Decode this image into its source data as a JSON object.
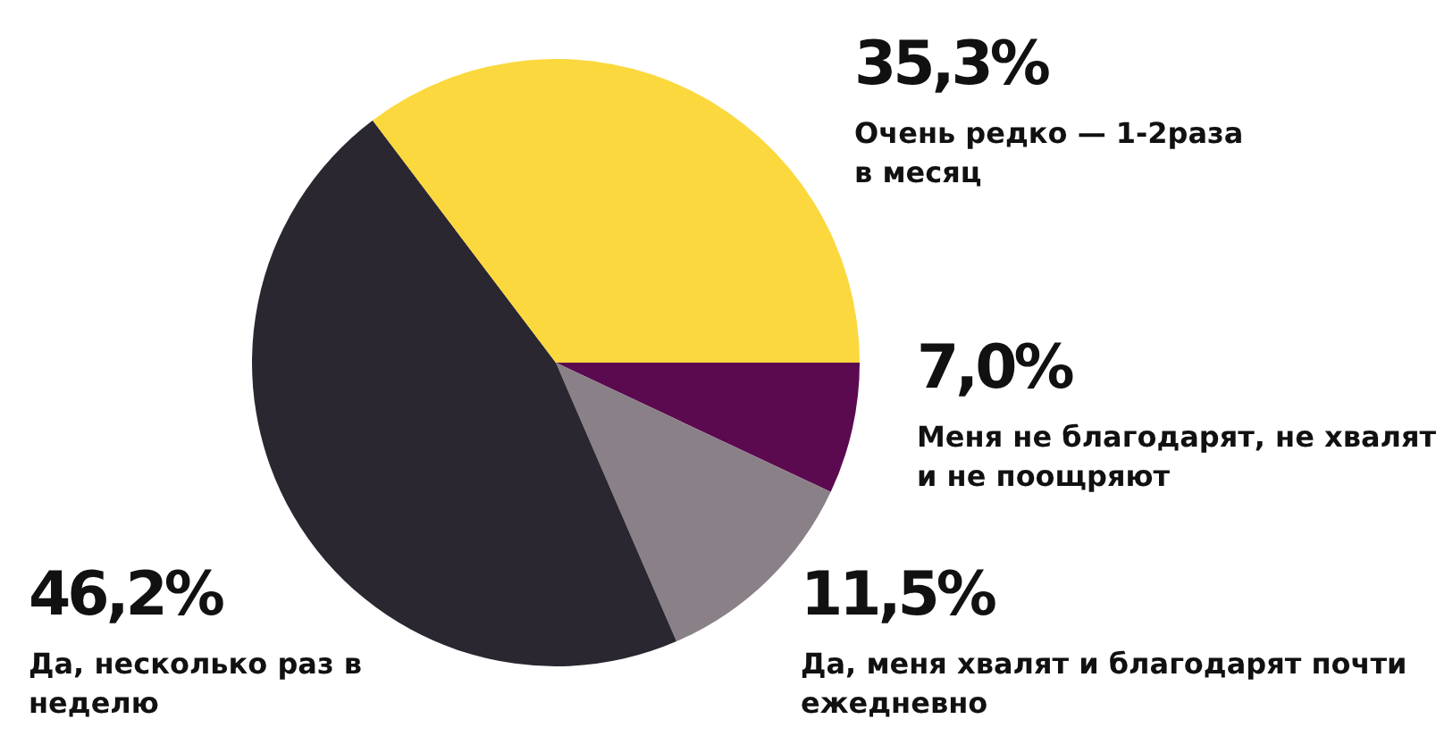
{
  "chart_data": {
    "type": "pie",
    "categories": [
      "Меня не благодарят, не хвалят и не поощряют",
      "Да, меня хвалят и благодарят почти ежедневно",
      "Да, несколько раз в неделю",
      "Очень редко — 1-2раза в месяц"
    ],
    "values": [
      7.0,
      11.5,
      46.2,
      35.3
    ],
    "colors": [
      "#5c0a4f",
      "#8a8088",
      "#2b2731",
      "#fbd83e"
    ],
    "value_labels": [
      "7,0%",
      "11,5%",
      "46,2%",
      "35,3%"
    ],
    "legend": false
  }
}
